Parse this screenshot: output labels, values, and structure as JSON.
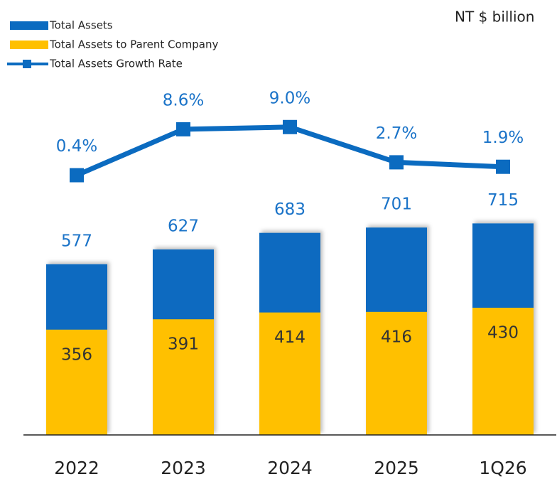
{
  "chart_data": {
    "type": "bar",
    "unit_label": "NT $ billion",
    "categories": [
      "2022",
      "2023",
      "2024",
      "2025",
      "1Q26"
    ],
    "series": [
      {
        "name": "Total Assets",
        "color": "#0b6bc0",
        "values": [
          577,
          627,
          683,
          701,
          715
        ]
      },
      {
        "name": "Total Assets to Parent Company",
        "color": "#ffc000",
        "values": [
          356,
          391,
          414,
          416,
          430
        ]
      },
      {
        "name": "Total Assets Growth Rate",
        "color": "#0b6bc0",
        "type": "line",
        "axis": "y2",
        "values": [
          0.4,
          8.6,
          9.0,
          2.7,
          1.9
        ],
        "value_labels": [
          "0.4%",
          "8.6%",
          "9.0%",
          "2.7%",
          "1.9%"
        ]
      }
    ],
    "ylim": [
      0,
      1230
    ],
    "y2lim": [
      -46,
      19
    ],
    "legend": "top-left"
  }
}
